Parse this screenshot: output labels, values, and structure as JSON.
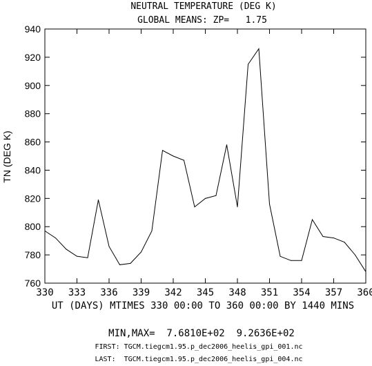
{
  "chart_data": {
    "type": "line",
    "title": "NEUTRAL TEMPERATURE (DEG K)",
    "subtitle": "GLOBAL MEANS: ZP=   1.75",
    "xlabel": "UT (DAYS) MTIMES 330 00:00 TO 360 00:00 BY 1440 MINS",
    "ylabel": "TN (DEG K)",
    "xlim": [
      330,
      360
    ],
    "ylim": [
      760,
      940
    ],
    "xticks": [
      330,
      333,
      336,
      339,
      342,
      345,
      348,
      351,
      354,
      357,
      360
    ],
    "yticks": [
      760,
      780,
      800,
      820,
      840,
      860,
      880,
      900,
      920,
      940
    ],
    "grid": false,
    "x": [
      330,
      331,
      332,
      333,
      334,
      335,
      336,
      337,
      338,
      339,
      340,
      341,
      342,
      343,
      344,
      345,
      346,
      347,
      348,
      349,
      350,
      351,
      352,
      353,
      354,
      355,
      356,
      357,
      358,
      359,
      360
    ],
    "y": [
      797,
      792,
      784,
      779,
      778,
      819,
      786,
      773,
      774,
      782,
      797,
      854,
      850,
      847,
      814,
      820,
      822,
      858,
      814,
      915,
      926,
      816,
      779,
      776,
      776,
      805,
      793,
      792,
      789,
      780,
      768.1
    ],
    "summary": "MIN,MAX=  7.6810E+02  9.2636E+02",
    "footer_first": "FIRST: TGCM.tiegcm1.95.p_dec2006_heelis_gpi_001.nc",
    "footer_last": "LAST:  TGCM.tiegcm1.95.p_dec2006_heelis_gpi_004.nc"
  }
}
